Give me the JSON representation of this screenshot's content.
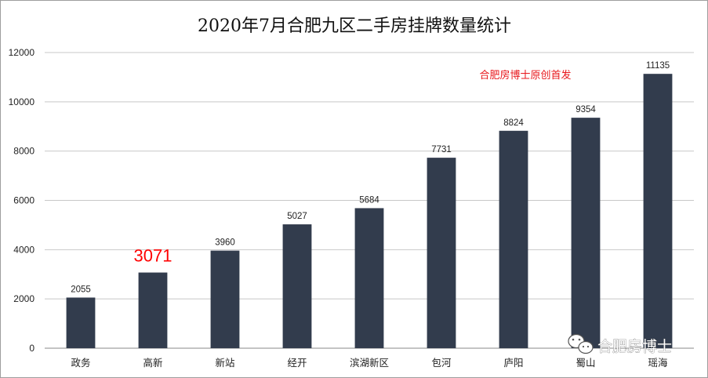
{
  "chart_data": {
    "type": "bar",
    "title": "2020年7月合肥九区二手房挂牌数量统计",
    "categories": [
      "政务",
      "高新",
      "新站",
      "经开",
      "滨湖新区",
      "包河",
      "庐阳",
      "蜀山",
      "瑶海"
    ],
    "values": [
      2055,
      3071,
      3960,
      5027,
      5684,
      7731,
      8824,
      9354,
      11135
    ],
    "value_labels": [
      "2055",
      "3071",
      "3960",
      "5027",
      "5684",
      "7731",
      "8824",
      "9354",
      "11135"
    ],
    "highlight_index": 1,
    "highlight_color": "#ff0000",
    "bar_color": "#323c4d",
    "ylim": [
      0,
      12000
    ],
    "yticks": [
      0,
      2000,
      4000,
      6000,
      8000,
      10000,
      12000
    ],
    "ytick_labels": [
      "0",
      "2000",
      "4000",
      "6000",
      "8000",
      "10000",
      "12000"
    ],
    "grid": true,
    "xlabel": "",
    "ylabel": "",
    "annotation": "合肥房博士原创首发",
    "annotation_color": "#e8191e"
  },
  "watermark": {
    "icon": "wechat-icon",
    "text": "合肥房博士"
  }
}
